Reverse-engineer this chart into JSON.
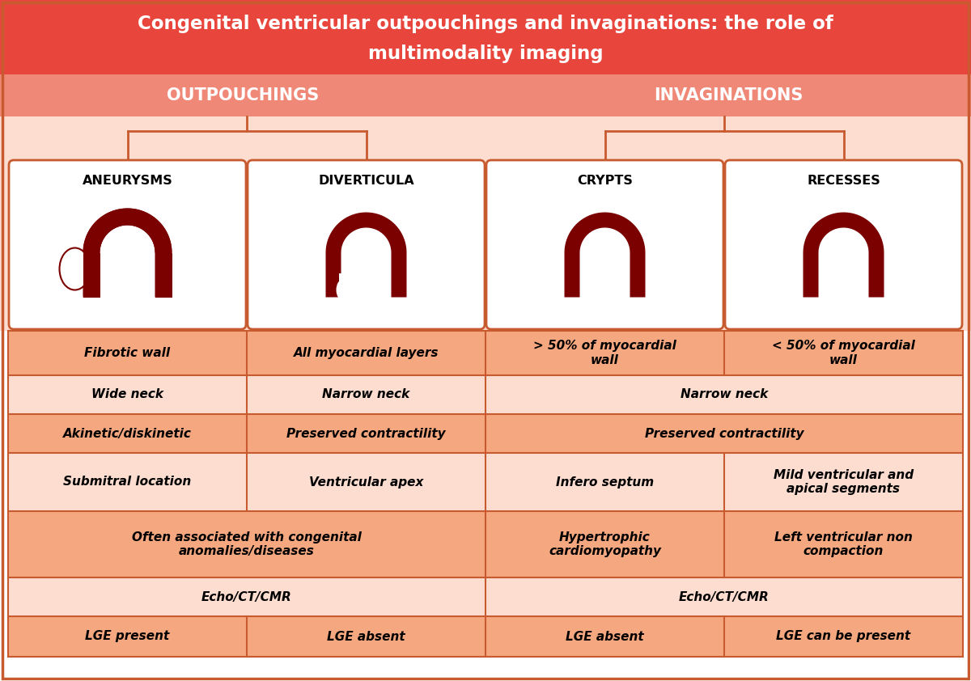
{
  "title_line1": "Congenital ventricular outpouchings and invaginations: the role of",
  "title_line2": "multimodality imaging",
  "title_bg": "#E8453C",
  "title_color": "#FFFFFF",
  "header_bg": "#F08878",
  "header_left": "OUTPOUCHINGS",
  "header_right": "INVAGINATIONS",
  "header_color": "#FFFFFF",
  "card_bg": "#FFFFFF",
  "card_border": "#C85A30",
  "body_bg": "#FDDDD0",
  "row_alt_bg": "#F5A880",
  "dark_red": "#7B0000",
  "categories": [
    "ANEURYSMS",
    "DIVERTICULA",
    "CRYPTS",
    "RECESSES"
  ],
  "rows": [
    {
      "cells": [
        {
          "col": 0,
          "text": "Fibrotic wall",
          "span": 1
        },
        {
          "col": 1,
          "text": "All myocardial layers",
          "span": 1
        },
        {
          "col": 2,
          "text": "> 50% of myocardial\nwall",
          "span": 1
        },
        {
          "col": 3,
          "text": "< 50% of myocardial\nwall",
          "span": 1
        }
      ],
      "alt": true
    },
    {
      "cells": [
        {
          "col": 0,
          "text": "Wide neck",
          "span": 1
        },
        {
          "col": 1,
          "text": "Narrow neck",
          "span": 1
        },
        {
          "col": 2,
          "text": "Narrow neck",
          "span": 2
        }
      ],
      "alt": false
    },
    {
      "cells": [
        {
          "col": 0,
          "text": "Akinetic/diskinetic",
          "span": 1
        },
        {
          "col": 1,
          "text": "Preserved contractility",
          "span": 1
        },
        {
          "col": 2,
          "text": "Preserved contractility",
          "span": 2
        }
      ],
      "alt": true
    },
    {
      "cells": [
        {
          "col": 0,
          "text": "Submitral location",
          "span": 1
        },
        {
          "col": 1,
          "text": "Ventricular apex",
          "span": 1
        },
        {
          "col": 2,
          "text": "Infero septum",
          "span": 1
        },
        {
          "col": 3,
          "text": "Mild ventricular and\napical segments",
          "span": 1
        }
      ],
      "alt": false
    },
    {
      "cells": [
        {
          "col": 0,
          "text": "Often associated with congenital\nanomalies/diseases",
          "span": 2
        },
        {
          "col": 2,
          "text": "Hypertrophic\ncardiomyopathy",
          "span": 1
        },
        {
          "col": 3,
          "text": "Left ventricular non\ncompaction",
          "span": 1
        }
      ],
      "alt": true
    },
    {
      "cells": [
        {
          "col": 0,
          "text": "Echo/CT/CMR",
          "span": 2
        },
        {
          "col": 2,
          "text": "Echo/CT/CMR",
          "span": 2
        }
      ],
      "alt": false
    },
    {
      "cells": [
        {
          "col": 0,
          "text": "LGE present",
          "span": 1
        },
        {
          "col": 1,
          "text": "LGE absent",
          "span": 1
        },
        {
          "col": 2,
          "text": "LGE absent",
          "span": 1
        },
        {
          "col": 3,
          "text": "LGE can be present",
          "span": 1
        }
      ],
      "alt": true
    }
  ],
  "outer_border": "#C85A30",
  "divider_color": "#C85A30"
}
